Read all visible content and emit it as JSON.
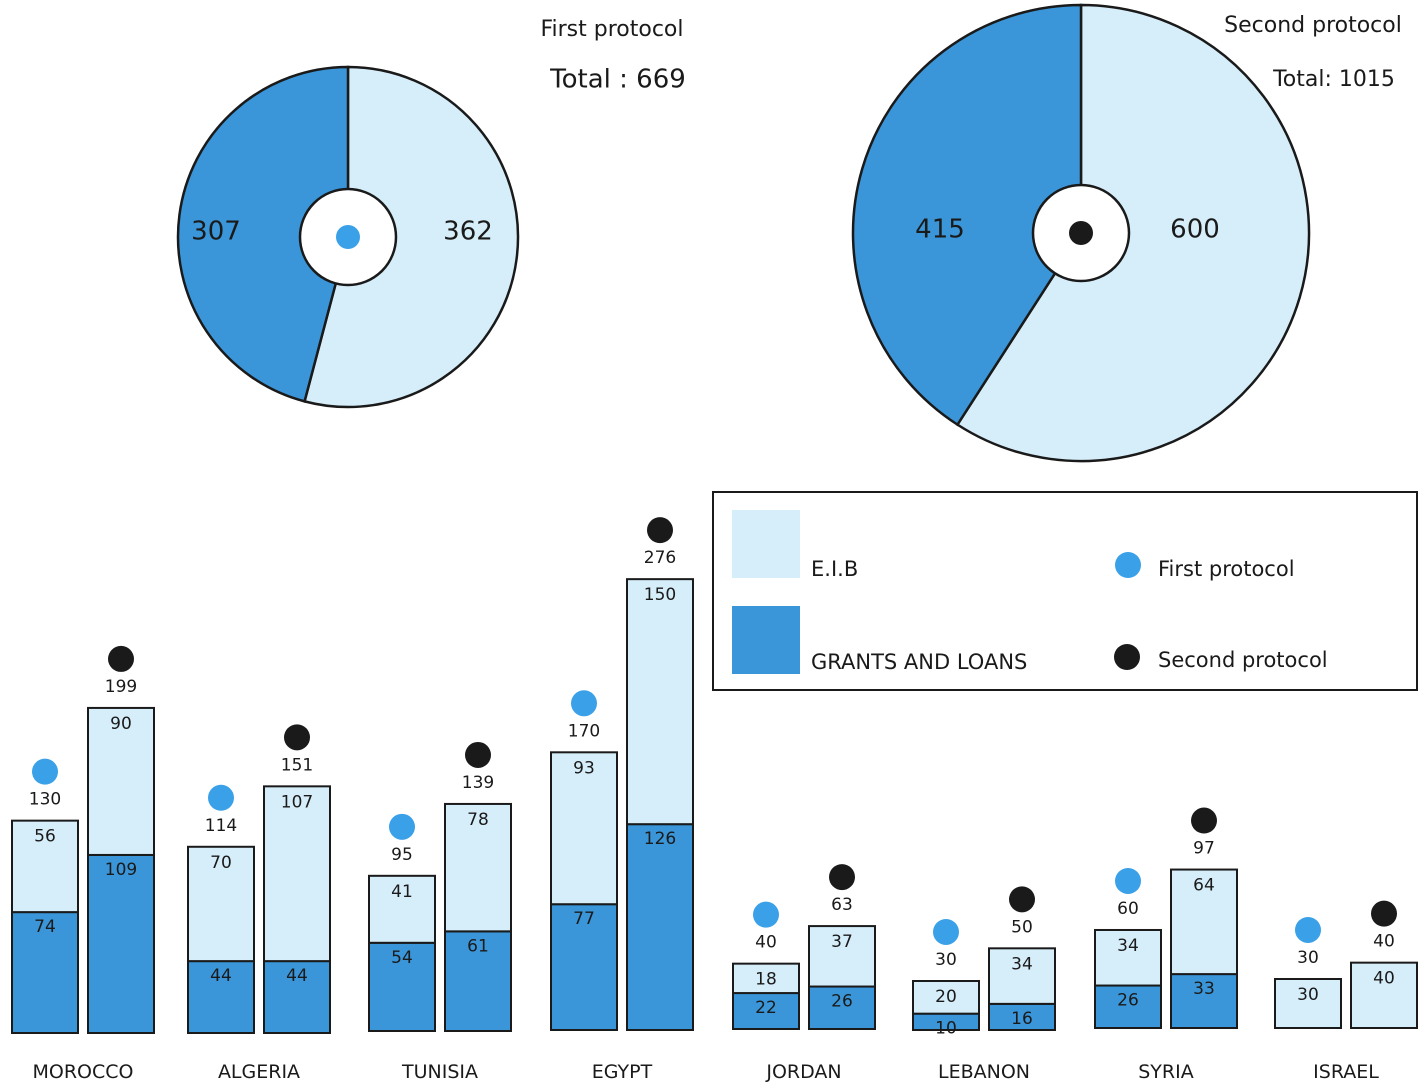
{
  "chart_data": [
    {
      "type": "pie",
      "title": "First protocol",
      "total_label": "Total : 669",
      "slices": [
        {
          "label": "E.I.B",
          "value": 362,
          "color": "#d6eefa"
        },
        {
          "label": "GRANTS AND LOANS",
          "value": 307,
          "color": "#3a96d8"
        }
      ],
      "marker_color": "#3aa0e8"
    },
    {
      "type": "pie",
      "title": "Second protocol",
      "total_label": "Total: 1015",
      "slices": [
        {
          "label": "E.I.B",
          "value": 600,
          "color": "#d6eefa"
        },
        {
          "label": "GRANTS AND LOANS",
          "value": 415,
          "color": "#3a96d8"
        }
      ],
      "marker_color": "#1a1a1a"
    },
    {
      "type": "bar",
      "stacked": true,
      "categories": [
        "MOROCCO",
        "ALGERIA",
        "TUNISIA",
        "EGYPT",
        "JORDAN",
        "LEBANON",
        "SYRIA",
        "ISRAEL"
      ],
      "bars": [
        {
          "country": "MOROCCO",
          "protocol": "First protocol",
          "eib": 56,
          "grants": 74,
          "total": 130
        },
        {
          "country": "MOROCCO",
          "protocol": "Second protocol",
          "eib": 90,
          "grants": 109,
          "total": 199
        },
        {
          "country": "ALGERIA",
          "protocol": "First protocol",
          "eib": 70,
          "grants": 44,
          "total": 114
        },
        {
          "country": "ALGERIA",
          "protocol": "Second protocol",
          "eib": 107,
          "grants": 44,
          "total": 151
        },
        {
          "country": "TUNISIA",
          "protocol": "First protocol",
          "eib": 41,
          "grants": 54,
          "total": 95
        },
        {
          "country": "TUNISIA",
          "protocol": "Second protocol",
          "eib": 78,
          "grants": 61,
          "total": 139
        },
        {
          "country": "EGYPT",
          "protocol": "First protocol",
          "eib": 93,
          "grants": 77,
          "total": 170
        },
        {
          "country": "EGYPT",
          "protocol": "Second protocol",
          "eib": 150,
          "grants": 126,
          "total": 276
        },
        {
          "country": "JORDAN",
          "protocol": "First protocol",
          "eib": 18,
          "grants": 22,
          "total": 40
        },
        {
          "country": "JORDAN",
          "protocol": "Second protocol",
          "eib": 37,
          "grants": 26,
          "total": 63
        },
        {
          "country": "LEBANON",
          "protocol": "First protocol",
          "eib": 20,
          "grants": 10,
          "total": 30
        },
        {
          "country": "LEBANON",
          "protocol": "Second protocol",
          "eib": 34,
          "grants": 16,
          "total": 50
        },
        {
          "country": "SYRIA",
          "protocol": "First protocol",
          "eib": 34,
          "grants": 26,
          "total": 60
        },
        {
          "country": "SYRIA",
          "protocol": "Second protocol",
          "eib": 64,
          "grants": 33,
          "total": 97
        },
        {
          "country": "ISRAEL",
          "protocol": "First protocol",
          "eib": 30,
          "grants": 0,
          "total": 30
        },
        {
          "country": "ISRAEL",
          "protocol": "Second protocol",
          "eib": 40,
          "grants": 0,
          "total": 40
        }
      ],
      "legend": {
        "placement": "right",
        "items": [
          {
            "label": "E.I.B",
            "swatch": "square",
            "color": "#d6eefa"
          },
          {
            "label": "GRANTS AND LOANS",
            "swatch": "square",
            "color": "#3a96d8"
          },
          {
            "label": "First protocol",
            "swatch": "dot",
            "color": "#3aa0e8"
          },
          {
            "label": "Second protocol",
            "swatch": "dot",
            "color": "#1a1a1a"
          }
        ]
      },
      "colors": {
        "eib": "#d6eefa",
        "grants": "#3a96d8",
        "first_dot": "#3aa0e8",
        "second_dot": "#1a1a1a"
      }
    }
  ]
}
